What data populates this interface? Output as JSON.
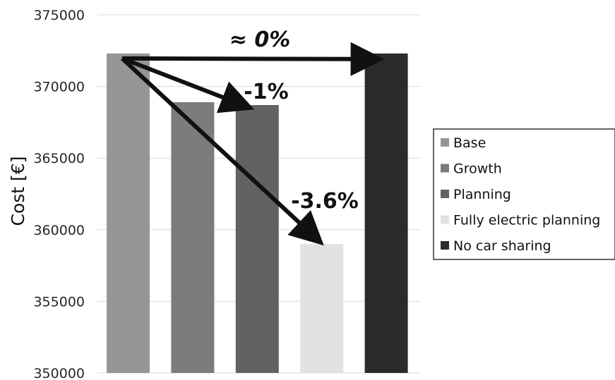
{
  "chart_data": {
    "type": "bar",
    "categories": [
      "Base",
      "Growth",
      "Planning",
      "Fully electric planning",
      "No car sharing"
    ],
    "values": [
      372300,
      368900,
      368700,
      359000,
      372300
    ],
    "colors": [
      "#969696",
      "#7c7c7c",
      "#626262",
      "#e2e2e2",
      "#2b2b2b"
    ],
    "title": "",
    "xlabel": "",
    "ylabel": "Cost [€]",
    "ylim": [
      350000,
      375000
    ],
    "yticks": [
      {
        "value": 350000,
        "label": "350000"
      },
      {
        "value": 355000,
        "label": "355000"
      },
      {
        "value": 360000,
        "label": "360000"
      },
      {
        "value": 365000,
        "label": "365000"
      },
      {
        "value": 370000,
        "label": "370000"
      },
      {
        "value": 375000,
        "label": "375000"
      }
    ],
    "grid": true,
    "legend": {
      "placement": "right",
      "entries": [
        "Base",
        "Growth",
        "Planning",
        "Fully electric planning",
        "No car sharing"
      ]
    },
    "annotations": [
      {
        "text": "≈ 0%",
        "from": 0,
        "to": 4,
        "italic": true,
        "color": "#707070"
      },
      {
        "text": "-1%",
        "from": 0,
        "to": 2,
        "italic": false,
        "color": "#111111"
      },
      {
        "text": "-3.6%",
        "from": 0,
        "to": 3,
        "italic": false,
        "color": "#111111"
      }
    ]
  }
}
